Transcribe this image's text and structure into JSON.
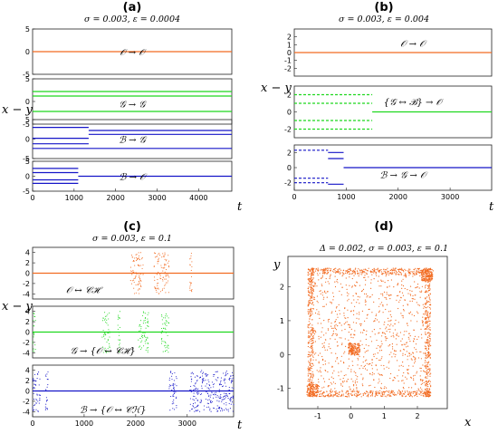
{
  "colors": {
    "orange": "#F26B21",
    "green": "#1FD81F",
    "blue": "#1515C8"
  },
  "chart_data": [
    {
      "panel": "(a)",
      "title": "σ = 0.003, ε = 0.0004",
      "type": "line",
      "xlabel": "t",
      "ylabel": "x − y",
      "xlim": [
        0,
        4800
      ],
      "xticks": [
        "0",
        "1000",
        "2000",
        "3000",
        "4000"
      ],
      "subplots": [
        {
          "annotation": "𝒪 → 𝒪",
          "color": "orange",
          "ylim": [
            -5,
            5
          ],
          "yticks": [
            "5",
            "0",
            "-5"
          ],
          "ytickvals": [
            5,
            0,
            -5
          ],
          "series": [
            {
              "segments": [
                [
                  [
                    0,
                    0
                  ],
                  [
                    4800,
                    0
                  ]
                ]
              ]
            }
          ]
        },
        {
          "annotation": "𝒢 → 𝒢",
          "color": "green",
          "ylim": [
            -5,
            5
          ],
          "yticks": [
            "5",
            "0",
            "-5"
          ],
          "ytickvals": [
            5,
            0,
            -5
          ],
          "series": [
            {
              "segments": [
                [
                  [
                    0,
                    2.2
                  ],
                  [
                    4800,
                    2.2
                  ]
                ],
                [
                  [
                    0,
                    1.2
                  ],
                  [
                    4800,
                    1.2
                  ]
                ],
                [
                  [
                    0,
                    -2.2
                  ],
                  [
                    4800,
                    -2.2
                  ]
                ]
              ]
            }
          ]
        },
        {
          "annotation": "ℬ → 𝒢",
          "color": "blue",
          "ylim": [
            -5,
            5
          ],
          "yticks": [
            "5",
            "0",
            "-5"
          ],
          "ytickvals": [
            5,
            0,
            -5
          ],
          "series": [
            {
              "segments": [
                [
                  [
                    0,
                    3
                  ],
                  [
                    1350,
                    3
                  ]
                ],
                [
                  [
                    1350,
                    2.2
                  ],
                  [
                    4800,
                    2.2
                  ]
                ],
                [
                  [
                    0,
                    0.2
                  ],
                  [
                    1350,
                    0.2
                  ]
                ],
                [
                  [
                    0,
                    -1.2
                  ],
                  [
                    1350,
                    -1.2
                  ]
                ],
                [
                  [
                    1350,
                    1.2
                  ],
                  [
                    4800,
                    1.2
                  ]
                ],
                [
                  [
                    0,
                    -2.4
                  ],
                  [
                    4800,
                    -2.4
                  ]
                ]
              ]
            }
          ]
        },
        {
          "annotation": "ℬ → 𝒪",
          "color": "blue",
          "ylim": [
            -5,
            5
          ],
          "yticks": [
            "5",
            "0",
            "-5"
          ],
          "ytickvals": [
            5,
            0,
            -5
          ],
          "series": [
            {
              "segments": [
                [
                  [
                    0,
                    2.6
                  ],
                  [
                    1100,
                    2.6
                  ]
                ],
                [
                  [
                    0,
                    1.2
                  ],
                  [
                    1100,
                    1.2
                  ]
                ],
                [
                  [
                    0,
                    -1.2
                  ],
                  [
                    1100,
                    -1.2
                  ]
                ],
                [
                  [
                    0,
                    -2.4
                  ],
                  [
                    1100,
                    -2.4
                  ]
                ],
                [
                  [
                    1100,
                    0
                  ],
                  [
                    4800,
                    0
                  ]
                ]
              ]
            }
          ]
        }
      ]
    },
    {
      "panel": "(b)",
      "title": "σ = 0.003, ε = 0.004",
      "type": "line",
      "xlabel": "t",
      "ylabel": "x − y",
      "xlim": [
        0,
        3800
      ],
      "xticks": [
        "0",
        "1000",
        "2000",
        "3000"
      ],
      "subplots": [
        {
          "annotation": "𝒪 → 𝒪",
          "color": "orange",
          "ylim": [
            -3,
            3
          ],
          "yticks": [
            "2",
            "1",
            "0",
            "-1",
            "-2"
          ],
          "ytickvals": [
            2,
            1,
            0,
            -1,
            -2
          ],
          "series": [
            {
              "segments": [
                [
                  [
                    0,
                    0
                  ],
                  [
                    3800,
                    0
                  ]
                ]
              ]
            }
          ]
        },
        {
          "annotation": "{𝒢 ↔ ℬ} → 𝒪",
          "color": "green",
          "ylim": [
            -3,
            3
          ],
          "yticks": [
            "2",
            "0",
            "-2"
          ],
          "ytickvals": [
            2,
            0,
            -2
          ],
          "series": [
            {
              "style": "dashed",
              "segments": [
                [
                  [
                    0,
                    2
                  ],
                  [
                    1500,
                    2
                  ]
                ],
                [
                  [
                    0,
                    1
                  ],
                  [
                    1500,
                    1
                  ]
                ],
                [
                  [
                    0,
                    -1
                  ],
                  [
                    1500,
                    -1
                  ]
                ],
                [
                  [
                    0,
                    -2
                  ],
                  [
                    1500,
                    -2
                  ]
                ]
              ]
            },
            {
              "segments": [
                [
                  [
                    1500,
                    0
                  ],
                  [
                    3800,
                    0
                  ]
                ]
              ]
            }
          ]
        },
        {
          "annotation": "ℬ → 𝒢 → 𝒪",
          "color": "blue",
          "ylim": [
            -3,
            3
          ],
          "yticks": [
            "2",
            "0",
            "-2"
          ],
          "ytickvals": [
            2,
            0,
            -2
          ],
          "series": [
            {
              "style": "dashed",
              "segments": [
                [
                  [
                    0,
                    2.3
                  ],
                  [
                    650,
                    2.3
                  ]
                ],
                [
                  [
                    0,
                    -1.4
                  ],
                  [
                    650,
                    -1.4
                  ]
                ],
                [
                  [
                    0,
                    -2
                  ],
                  [
                    650,
                    -2
                  ]
                ]
              ]
            },
            {
              "segments": [
                [
                  [
                    650,
                    2
                  ],
                  [
                    950,
                    2
                  ]
                ],
                [
                  [
                    650,
                    1.2
                  ],
                  [
                    950,
                    1.2
                  ]
                ],
                [
                  [
                    650,
                    -2.2
                  ],
                  [
                    950,
                    -2.2
                  ]
                ],
                [
                  [
                    950,
                    0
                  ],
                  [
                    3800,
                    0
                  ]
                ]
              ]
            }
          ]
        }
      ]
    },
    {
      "panel": "(c)",
      "title": "σ = 0.003, ε = 0.1",
      "type": "scatter",
      "xlabel": "t",
      "ylabel": "x − y",
      "xlim": [
        0,
        3900
      ],
      "xticks": [
        "0",
        "1000",
        "2000",
        "3000"
      ],
      "subplots": [
        {
          "annotation": "𝒪 ↔ 𝒞ℋ",
          "color": "orange",
          "ylim": [
            -5,
            5
          ],
          "yticks": [
            "4",
            "2",
            "0",
            "-2",
            "-4"
          ],
          "ytickvals": [
            4,
            2,
            0,
            -2,
            -4
          ],
          "baseline": 0,
          "bursts": [
            [
              1900,
              2150
            ],
            [
              2350,
              2650
            ],
            [
              3050,
              3100
            ]
          ],
          "amplitude": 4
        },
        {
          "annotation": "𝒢 → {𝒪 ↔ 𝒞ℋ}",
          "color": "green",
          "ylim": [
            -5,
            5
          ],
          "yticks": [
            "4",
            "2",
            "0",
            "-2",
            "-4"
          ],
          "ytickvals": [
            4,
            2,
            0,
            -2,
            -4
          ],
          "baseline": 0,
          "bursts": [
            [
              0,
              60
            ],
            [
              1350,
              1500
            ],
            [
              1650,
              1700
            ],
            [
              2050,
              2250
            ],
            [
              2500,
              2650
            ]
          ],
          "amplitude": 4
        },
        {
          "annotation": "ℬ → {𝒪 ↔ 𝒞ℋ}",
          "color": "blue",
          "ylim": [
            -5,
            5
          ],
          "yticks": [
            "4",
            "2",
            "0",
            "-2",
            "-4"
          ],
          "ytickvals": [
            4,
            2,
            0,
            -2,
            -4
          ],
          "baseline": 0,
          "bursts": [
            [
              0,
              150
            ],
            [
              250,
              300
            ],
            [
              2650,
              2800
            ],
            [
              3050,
              3900
            ]
          ],
          "amplitude": 4
        }
      ]
    },
    {
      "panel": "(d)",
      "title": "Δ = 0.002, σ = 0.003, ε = 0.1",
      "type": "scatter",
      "xlabel": "x",
      "ylabel": "y",
      "color": "orange",
      "xlim": [
        -1.9,
        2.9
      ],
      "ylim": [
        -1.6,
        2.9
      ],
      "xticks": [
        "-1",
        "0",
        "1",
        "2"
      ],
      "xtickvals": [
        -1,
        0,
        1,
        2
      ],
      "yticks": [
        "2",
        "1",
        "0",
        "-1"
      ],
      "ytickvals": [
        2,
        1,
        0,
        -1
      ],
      "region": {
        "xmin": -1.3,
        "xmax": 2.4,
        "ymin": -1.25,
        "ymax": 2.55
      },
      "clusters": [
        [
          2.3,
          2.35
        ],
        [
          -1.15,
          -1.05
        ],
        [
          0.1,
          0.15
        ]
      ],
      "point_count": 2600
    }
  ]
}
